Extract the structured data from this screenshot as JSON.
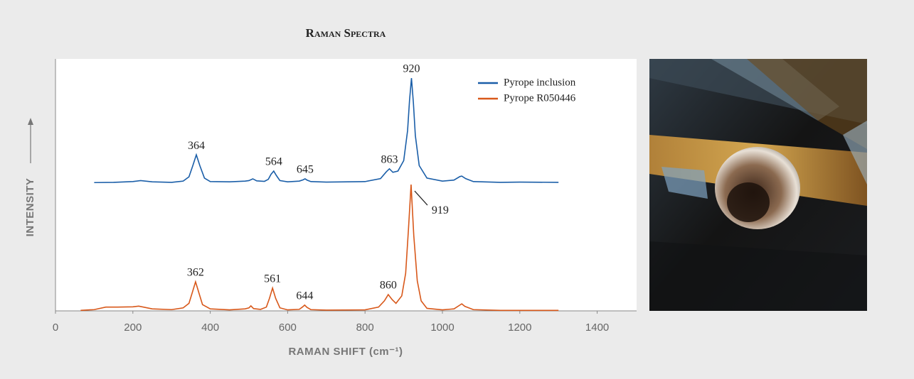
{
  "chart_data": {
    "type": "line",
    "title": "Raman Spectra",
    "xlabel": "RAMAN SHIFT (cm⁻¹)",
    "ylabel": "INTENSITY",
    "xlim": [
      0,
      1500
    ],
    "xticks": [
      0,
      200,
      400,
      600,
      800,
      1000,
      1200,
      1400
    ],
    "ylim": [
      0,
      100
    ],
    "grid": false,
    "legend": "upper right",
    "series": [
      {
        "name": "Pyrope inclusion",
        "color": "#1a5ea8",
        "x": [
          100,
          150,
          200,
          220,
          250,
          300,
          330,
          345,
          355,
          364,
          373,
          385,
          400,
          450,
          490,
          500,
          510,
          520,
          540,
          550,
          557,
          564,
          571,
          580,
          600,
          630,
          640,
          645,
          650,
          660,
          700,
          800,
          840,
          855,
          863,
          872,
          885,
          900,
          910,
          915,
          920,
          925,
          930,
          940,
          960,
          1000,
          1030,
          1045,
          1050,
          1060,
          1080,
          1150,
          1200,
          1300
        ],
        "values": [
          51.2,
          51.3,
          51.6,
          52,
          51.5,
          51.3,
          51.8,
          53.5,
          58,
          62.3,
          58,
          53,
          51.6,
          51.5,
          51.8,
          52,
          52.7,
          51.9,
          51.7,
          52.5,
          54.5,
          55.8,
          54,
          52,
          51.5,
          51.8,
          52.3,
          52.7,
          52.2,
          51.6,
          51.4,
          51.6,
          52.8,
          55.5,
          56.7,
          55.3,
          55.8,
          60,
          72,
          84,
          92.9,
          83,
          70,
          58,
          53,
          51.8,
          52.2,
          53.6,
          53.8,
          52.8,
          51.6,
          51.3,
          51.4,
          51.3
        ]
      },
      {
        "name": "Pyrope R050446",
        "color": "#d8581a",
        "x": [
          65,
          100,
          130,
          160,
          200,
          215,
          250,
          300,
          330,
          345,
          353,
          362,
          371,
          380,
          400,
          450,
          490,
          500,
          505,
          512,
          530,
          545,
          553,
          561,
          569,
          580,
          600,
          630,
          638,
          644,
          650,
          660,
          700,
          800,
          835,
          850,
          860,
          870,
          880,
          895,
          905,
          912,
          919,
          926,
          935,
          945,
          960,
          1000,
          1030,
          1045,
          1050,
          1058,
          1080,
          1150,
          1300
        ],
        "values": [
          0.2,
          0.5,
          1.5,
          1.5,
          1.6,
          1.9,
          0.8,
          0.5,
          1.2,
          3,
          7,
          11.6,
          7,
          2.5,
          0.8,
          0.4,
          0.8,
          1.2,
          2,
          0.9,
          0.6,
          1.5,
          5,
          9.1,
          5,
          1.2,
          0.4,
          0.6,
          1.5,
          2.3,
          1.4,
          0.5,
          0.3,
          0.4,
          1.5,
          4,
          6.5,
          4.5,
          3,
          6,
          15,
          32,
          50.4,
          30,
          12,
          4,
          1,
          0.4,
          0.8,
          2.3,
          2.8,
          1.8,
          0.5,
          0.2,
          0.2
        ]
      }
    ],
    "annotations": [
      {
        "series": 0,
        "x": 364,
        "label": "364"
      },
      {
        "series": 0,
        "x": 564,
        "label": "564"
      },
      {
        "series": 0,
        "x": 645,
        "label": "645"
      },
      {
        "series": 0,
        "x": 863,
        "label": "863"
      },
      {
        "series": 0,
        "x": 920,
        "label": "920"
      },
      {
        "series": 1,
        "x": 919,
        "label": "919",
        "leader": true
      },
      {
        "series": 1,
        "x": 362,
        "label": "362"
      },
      {
        "series": 1,
        "x": 561,
        "label": "561"
      },
      {
        "series": 1,
        "x": 644,
        "label": "644"
      },
      {
        "series": 1,
        "x": 860,
        "label": "860"
      }
    ]
  }
}
